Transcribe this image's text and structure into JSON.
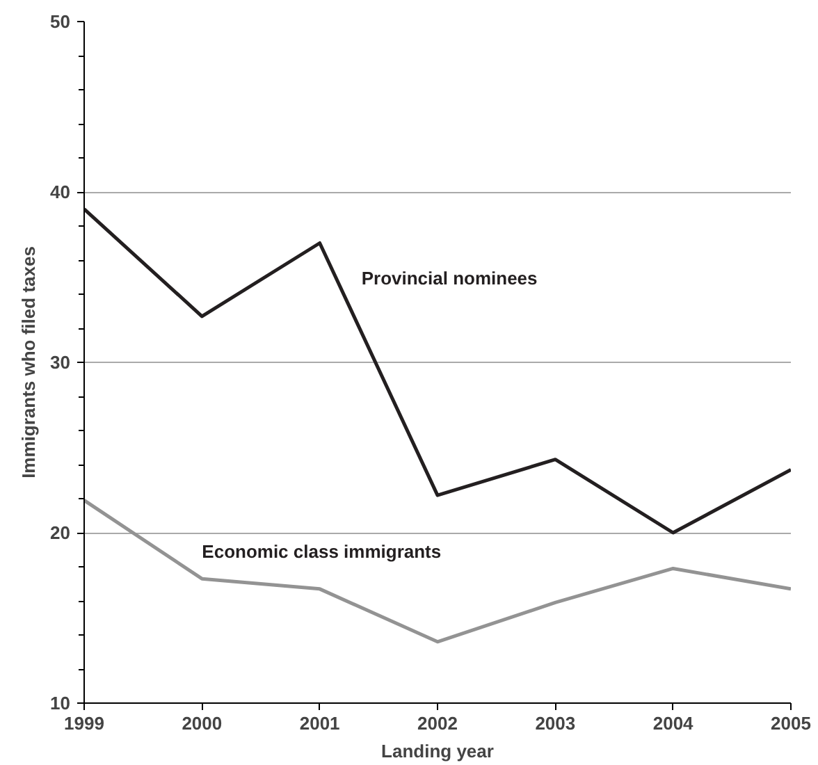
{
  "chart_data": {
    "type": "line",
    "xlabel": "Landing year",
    "ylabel": "Immigrants who filed taxes",
    "x": [
      1999,
      2000,
      2001,
      2002,
      2003,
      2004,
      2005
    ],
    "xlim": [
      1999,
      2005
    ],
    "xticks": [
      1999,
      2000,
      2001,
      2002,
      2003,
      2004,
      2005
    ],
    "ylim": [
      10,
      50
    ],
    "yticks": [
      10,
      20,
      30,
      40,
      50
    ],
    "grid": "y",
    "marker": "none",
    "line_style": "solid",
    "series": [
      {
        "name": "Provincial nominees",
        "color": "#231f20",
        "values": [
          39.0,
          32.7,
          37.0,
          22.2,
          24.3,
          20.0,
          23.7
        ]
      },
      {
        "name": "Economic class immigrants",
        "color": "#939393",
        "values": [
          21.9,
          17.3,
          16.7,
          13.6,
          15.9,
          17.9,
          16.7
        ]
      }
    ]
  }
}
